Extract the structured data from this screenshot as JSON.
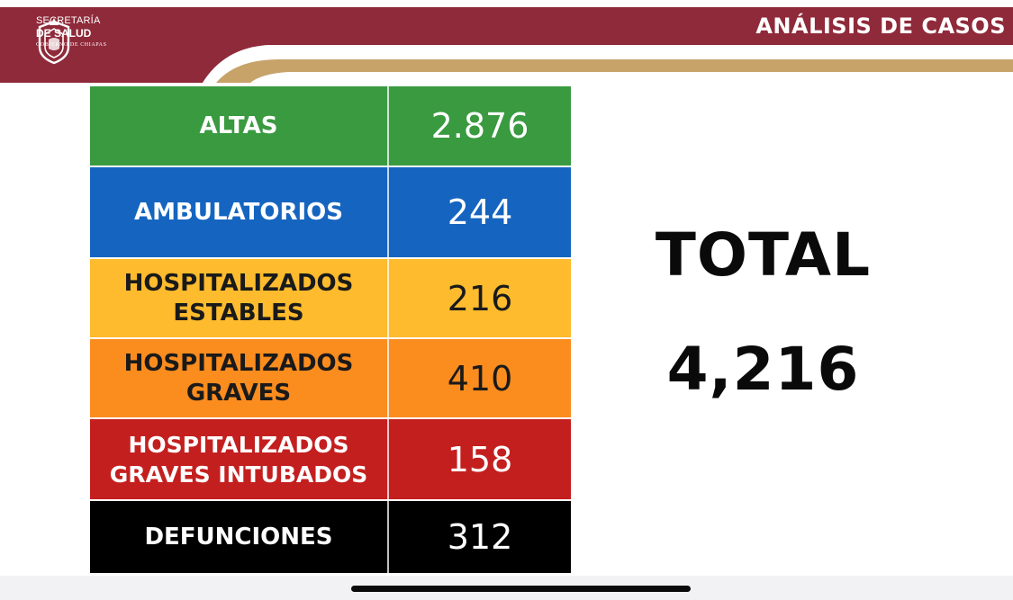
{
  "header": {
    "logo_line1": "SECRETARÍA",
    "logo_line2": "DE SALUD",
    "logo_line3": "GOBIERNO DE CHIAPAS",
    "title": "ANÁLISIS DE CASOS",
    "colors": {
      "maroon": "#8f2a3a",
      "gold": "#c7a36a"
    }
  },
  "table": {
    "rows": [
      {
        "label": "ALTAS",
        "value": "2.876",
        "bg": "#3a9a40",
        "label_color": "#ffffff",
        "value_color": "#ffffff"
      },
      {
        "label": "AMBULATORIOS",
        "value": "244",
        "bg": "#1565c0",
        "label_color": "#ffffff",
        "value_color": "#ffffff"
      },
      {
        "label": "HOSPITALIZADOS ESTABLES",
        "value": "216",
        "bg": "#fdbb2d",
        "label_color": "#1a1a1a",
        "value_color": "#1a1a1a"
      },
      {
        "label": "HOSPITALIZADOS GRAVES",
        "value": "410",
        "bg": "#fb8c1e",
        "label_color": "#1a1a1a",
        "value_color": "#1a1a1a"
      },
      {
        "label": "HOSPITALIZADOS GRAVES INTUBADOS",
        "value": "158",
        "bg": "#c41f1f",
        "label_color": "#ffffff",
        "value_color": "#ffffff"
      },
      {
        "label": "DEFUNCIONES",
        "value": "312",
        "bg": "#000000",
        "label_color": "#ffffff",
        "value_color": "#ffffff"
      }
    ]
  },
  "summary": {
    "total_label": "TOTAL",
    "total_value": "4,216"
  }
}
